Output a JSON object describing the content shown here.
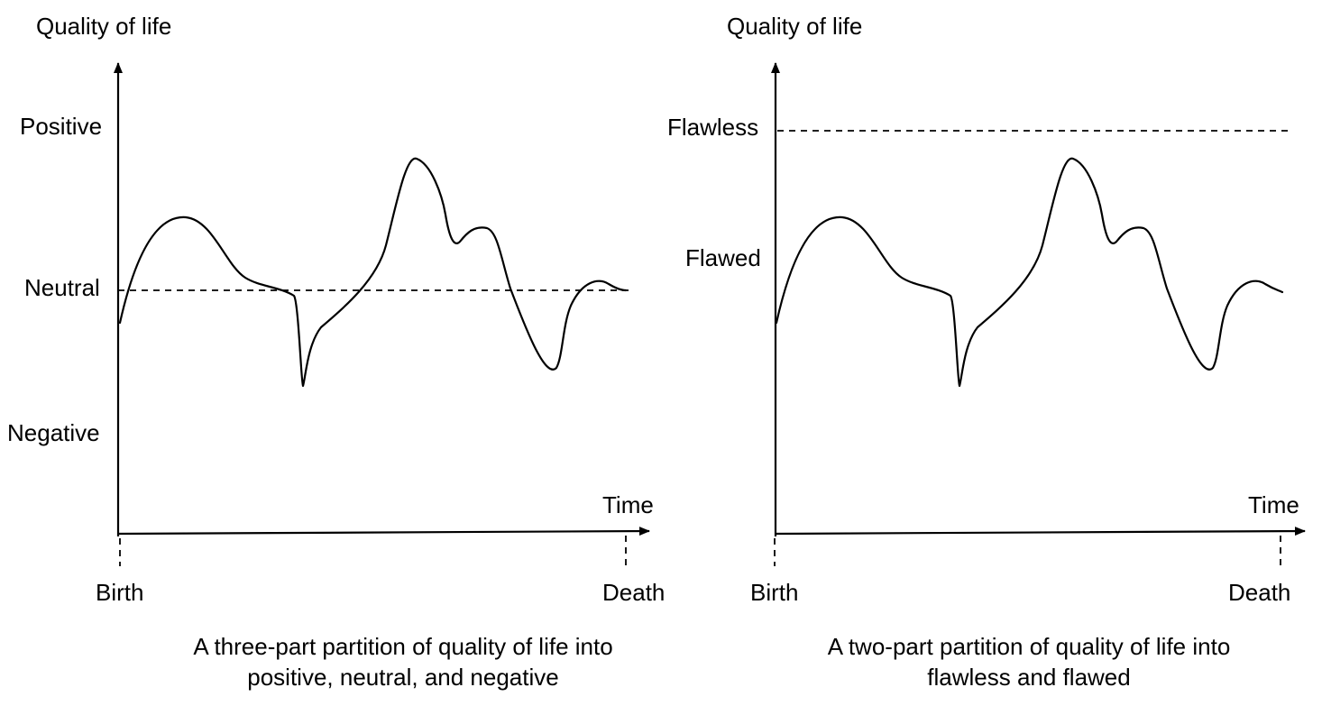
{
  "left_panel": {
    "y_axis_label": "Quality of life",
    "x_axis_label": "Time",
    "levels": [
      "Positive",
      "Neutral",
      "Negative"
    ],
    "start_label": "Birth",
    "end_label": "Death",
    "caption_line1": "A three-part partition of quality of life into",
    "caption_line2": "positive, neutral, and negative"
  },
  "right_panel": {
    "y_axis_label": "Quality of life",
    "x_axis_label": "Time",
    "levels": [
      "Flawless",
      "Flawed"
    ],
    "start_label": "Birth",
    "end_label": "Death",
    "caption_line1": "A two-part partition of quality of life into",
    "caption_line2": "flawless and flawed"
  }
}
